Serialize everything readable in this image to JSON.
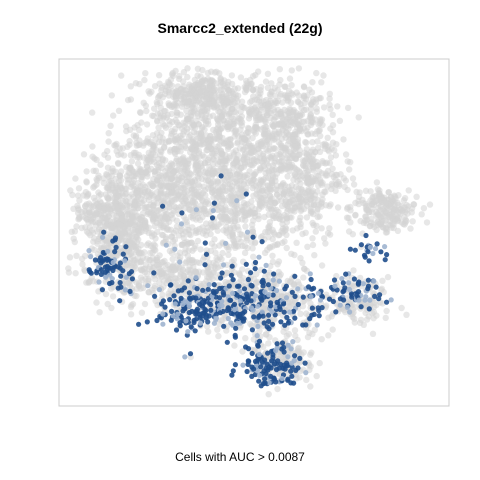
{
  "chart_data": {
    "type": "scatter",
    "title": "Smarcc2_extended (22g)",
    "caption": "Cells with AUC > 0.0087",
    "xlabel": "",
    "ylabel": "",
    "axes_visible": false,
    "grid": false,
    "legend": "none",
    "series": [
      {
        "role": "below threshold",
        "color": "#d3d3d3",
        "point_count_estimate": 4200
      },
      {
        "role": "above threshold",
        "color": "#1f4e8c",
        "color_light": "#9fb4cf",
        "point_count_estimate": 650
      }
    ]
  }
}
